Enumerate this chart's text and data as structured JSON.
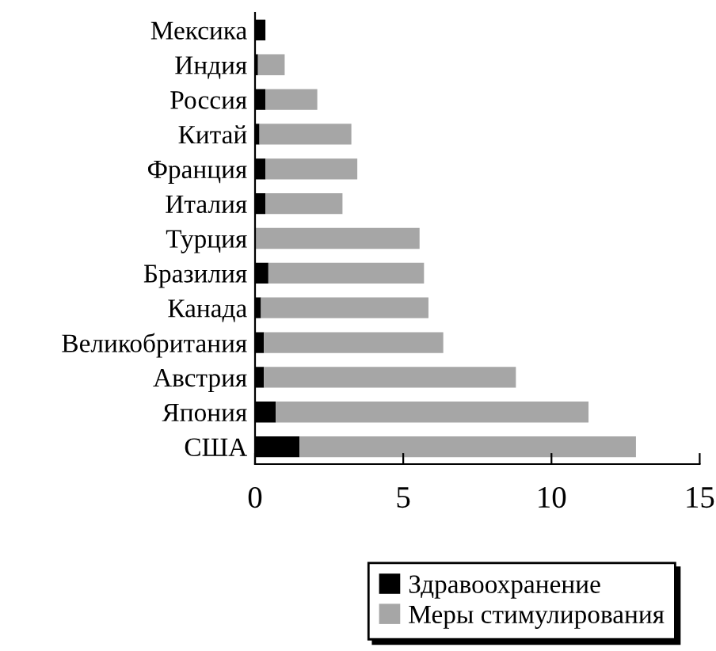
{
  "chart_data": {
    "type": "bar",
    "orientation": "horizontal",
    "stacked": true,
    "categories": [
      "Мексика",
      "Индия",
      "Россия",
      "Китай",
      "Франция",
      "Италия",
      "Турция",
      "Бразилия",
      "Канада",
      "Великобритания",
      "Австрия",
      "Япония",
      "США"
    ],
    "series": [
      {
        "name": "Здравоохранение",
        "color": "#000000",
        "values": [
          0.35,
          0.1,
          0.35,
          0.15,
          0.35,
          0.35,
          0,
          0.45,
          0.2,
          0.3,
          0.3,
          0.7,
          1.5
        ]
      },
      {
        "name": "Меры стимулирования",
        "color": "#a6a6a6",
        "values": [
          0,
          0.9,
          1.75,
          3.1,
          3.1,
          2.6,
          5.55,
          5.25,
          5.65,
          6.05,
          8.5,
          10.55,
          11.35
        ]
      }
    ],
    "xlim": [
      0,
      15
    ],
    "xticks": [
      0,
      5,
      10,
      15
    ],
    "grid": false,
    "legend": "bottom"
  }
}
